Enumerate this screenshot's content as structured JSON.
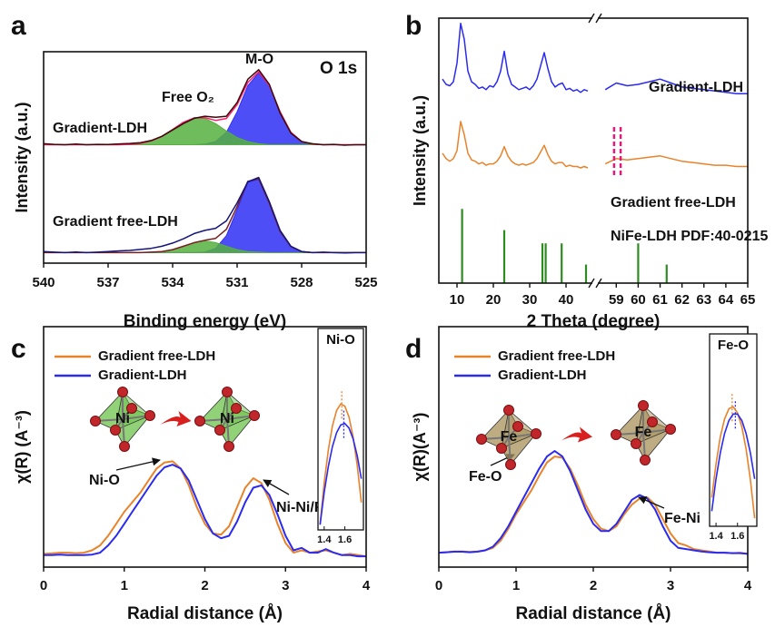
{
  "chart_data": [
    {
      "type": "line",
      "panel": "a",
      "x_label": "Binding energy (eV)",
      "y_label": "Intensity (a.u.)",
      "labels": [
        {
          "text": "O 1s",
          "color": "#000000"
        },
        {
          "text": "M-O",
          "color": "#2f2ff5"
        },
        {
          "text": "Free O₂",
          "color": "#4aa83a"
        },
        {
          "text": "Gradient-LDH",
          "color": "#111111"
        },
        {
          "text": "Gradient free-LDH",
          "color": "#111111"
        }
      ],
      "xlim": [
        540,
        525
      ],
      "xticks": [
        540,
        537,
        534,
        531,
        528,
        525
      ],
      "ylim": [
        0,
        10
      ],
      "x": [
        540,
        539.5,
        539,
        538.5,
        538,
        537.5,
        537,
        536.5,
        536,
        535.5,
        535,
        534.5,
        534,
        533.5,
        533,
        532.5,
        532,
        531.5,
        531,
        530.5,
        530,
        529.5,
        529,
        528.5,
        528,
        527.5,
        527,
        526.5,
        526,
        525.5,
        525
      ],
      "series": [
        {
          "color": "#2f2ff5",
          "fill": true,
          "values": [
            5.6,
            5.6,
            5.6,
            5.6,
            5.6,
            5.6,
            5.6,
            5.6,
            5.6,
            5.6,
            5.6,
            5.6,
            5.6,
            5.6,
            5.6,
            5.63,
            5.75,
            6.19,
            7.16,
            8.4,
            9.0,
            8.4,
            7.16,
            6.19,
            5.75,
            5.63,
            5.6,
            5.6,
            5.6,
            5.6,
            5.6
          ]
        },
        {
          "color": "#55b040",
          "fill": true,
          "values": [
            5.6,
            5.6,
            5.6,
            5.6,
            5.6,
            5.6,
            5.6,
            5.6,
            5.62,
            5.66,
            5.78,
            5.99,
            6.32,
            6.66,
            6.87,
            6.85,
            6.6,
            6.25,
            5.94,
            5.75,
            5.65,
            5.6,
            5.6,
            5.6,
            5.6,
            5.6,
            5.6,
            5.6,
            5.6,
            5.6,
            5.6
          ]
        },
        {
          "color": "#ff1f6e",
          "values": [
            5.6,
            5.6,
            5.6,
            5.6,
            5.6,
            5.6,
            5.6,
            5.6,
            5.62,
            5.66,
            5.78,
            5.99,
            6.32,
            6.66,
            6.87,
            6.88,
            6.75,
            6.84,
            7.5,
            8.55,
            9.05,
            8.4,
            7.16,
            6.19,
            5.75,
            5.63,
            5.6,
            5.6,
            5.6,
            5.6,
            5.6
          ]
        },
        {
          "color": "#3b0a0a",
          "values": [
            5.65,
            5.62,
            5.6,
            5.63,
            5.6,
            5.62,
            5.61,
            5.64,
            5.66,
            5.7,
            5.8,
            6.0,
            6.3,
            6.6,
            6.85,
            6.95,
            6.9,
            6.95,
            7.6,
            8.7,
            9.15,
            8.45,
            7.1,
            6.15,
            5.75,
            5.65,
            5.6,
            5.62,
            5.58,
            5.6,
            5.6
          ]
        },
        {
          "color": "#2f2ff5",
          "fill": true,
          "values": [
            0.5,
            0.5,
            0.5,
            0.5,
            0.5,
            0.5,
            0.5,
            0.5,
            0.5,
            0.5,
            0.5,
            0.5,
            0.5,
            0.5,
            0.5,
            0.53,
            0.7,
            1.3,
            2.54,
            3.82,
            3.97,
            2.83,
            1.5,
            0.78,
            0.55,
            0.5,
            0.5,
            0.5,
            0.5,
            0.5,
            0.5
          ]
        },
        {
          "color": "#55b040",
          "fill": true,
          "values": [
            0.5,
            0.5,
            0.5,
            0.5,
            0.5,
            0.5,
            0.5,
            0.5,
            0.5,
            0.5,
            0.52,
            0.55,
            0.64,
            0.8,
            0.97,
            1.05,
            0.97,
            0.8,
            0.64,
            0.55,
            0.52,
            0.5,
            0.5,
            0.5,
            0.5,
            0.5,
            0.5,
            0.5,
            0.5,
            0.5,
            0.5
          ]
        },
        {
          "color": "#7a2020",
          "values": [
            0.5,
            0.5,
            0.5,
            0.5,
            0.5,
            0.5,
            0.5,
            0.5,
            0.5,
            0.5,
            0.52,
            0.55,
            0.64,
            0.8,
            0.97,
            1.08,
            1.17,
            1.6,
            2.68,
            3.87,
            3.99,
            2.83,
            1.5,
            0.78,
            0.55,
            0.5,
            0.5,
            0.5,
            0.5,
            0.5,
            0.5
          ]
        },
        {
          "color": "#14147a",
          "values": [
            0.55,
            0.52,
            0.5,
            0.53,
            0.5,
            0.52,
            0.55,
            0.58,
            0.6,
            0.65,
            0.7,
            0.8,
            0.95,
            1.15,
            1.4,
            1.55,
            1.65,
            2.0,
            2.85,
            3.85,
            4.05,
            2.9,
            1.55,
            0.8,
            0.55,
            0.5,
            0.52,
            0.5,
            0.48,
            0.5,
            0.5
          ]
        }
      ]
    },
    {
      "type": "line",
      "panel": "b",
      "x_label": "2 Theta (degree)",
      "y_label": "Intensity (a.u.)",
      "xlim": [
        [
          5,
          47
        ],
        [
          58.2,
          65
        ]
      ],
      "xticks": [
        10,
        20,
        30,
        40,
        59,
        60,
        61,
        62,
        63,
        64,
        65
      ],
      "ylim": [
        0,
        10
      ],
      "x": [
        6,
        7,
        8,
        9,
        10,
        11,
        12,
        13,
        14,
        15,
        16,
        17,
        18,
        19,
        20,
        21,
        22,
        23,
        24,
        25,
        26,
        27,
        28,
        29,
        30,
        31,
        32,
        33,
        34,
        35,
        36,
        37,
        38,
        39,
        40,
        41,
        42,
        43,
        44,
        45,
        46,
        58.5,
        59,
        59.5,
        60,
        60.5,
        61,
        61.5,
        62,
        62.5,
        63,
        63.5,
        64,
        64.5,
        65
      ],
      "series": [
        {
          "name": "Gradient-LDH",
          "color": "#2a2af0",
          "values": [
            7.7,
            7.5,
            7.45,
            7.6,
            8.3,
            9.8,
            9.2,
            8.0,
            7.6,
            7.5,
            7.35,
            7.4,
            7.3,
            7.45,
            7.4,
            7.6,
            8.0,
            8.75,
            7.9,
            7.5,
            7.4,
            7.3,
            7.35,
            7.4,
            7.3,
            7.45,
            7.7,
            8.2,
            8.7,
            8.1,
            7.6,
            7.4,
            7.5,
            7.55,
            7.3,
            7.35,
            7.25,
            7.3,
            7.2,
            7.3,
            7.25,
            7.3,
            7.55,
            7.45,
            7.5,
            7.6,
            7.7,
            7.55,
            7.4,
            7.35,
            7.3,
            7.25,
            7.2,
            7.15,
            7.15
          ]
        },
        {
          "name": "Gradient free-LDH",
          "color": "#e8832a",
          "values": [
            4.9,
            4.7,
            4.6,
            4.7,
            5.0,
            6.1,
            5.6,
            4.9,
            4.65,
            4.6,
            4.5,
            4.55,
            4.45,
            4.5,
            4.5,
            4.6,
            4.8,
            5.15,
            4.8,
            4.6,
            4.5,
            4.45,
            4.5,
            4.45,
            4.5,
            4.55,
            4.7,
            4.95,
            5.2,
            4.85,
            4.6,
            4.5,
            4.55,
            4.55,
            4.4,
            4.45,
            4.4,
            4.4,
            4.35,
            4.4,
            4.35,
            4.5,
            4.7,
            4.65,
            4.7,
            4.75,
            4.8,
            4.7,
            4.6,
            4.55,
            4.5,
            4.45,
            4.45,
            4.4,
            4.4
          ]
        }
      ],
      "reference": {
        "name": "NiFe-LDH PDF:40-0215",
        "color": "#2e8b22",
        "x": [
          11.4,
          23.0,
          33.5,
          34.4,
          38.8,
          45.5,
          60.0,
          61.3
        ],
        "values": [
          2.8,
          2.0,
          1.5,
          1.5,
          1.5,
          0.7,
          1.5,
          0.7
        ]
      },
      "markers": {
        "color": "#e6197a",
        "x": [
          58.9,
          59.2
        ]
      }
    },
    {
      "type": "line",
      "panel": "c",
      "x_label": "Radial distance (Å)",
      "y_label": "χ(R) (A⁻³)",
      "legend": "upper left",
      "xlim": [
        0,
        4
      ],
      "xticks": [
        0,
        1,
        2,
        3,
        4
      ],
      "ylim": [
        0,
        10
      ],
      "x": [
        0,
        0.1,
        0.2,
        0.3,
        0.4,
        0.5,
        0.6,
        0.7,
        0.8,
        0.9,
        1.0,
        1.1,
        1.2,
        1.3,
        1.4,
        1.5,
        1.6,
        1.7,
        1.8,
        1.9,
        2.0,
        2.1,
        2.2,
        2.3,
        2.4,
        2.5,
        2.6,
        2.7,
        2.8,
        2.9,
        3.0,
        3.1,
        3.2,
        3.3,
        3.4,
        3.5,
        3.6,
        3.7,
        3.8,
        3.9,
        4.0
      ],
      "series": [
        {
          "name": "Gradient free-LDH",
          "color": "#e8832a",
          "values": [
            0.55,
            0.57,
            0.6,
            0.6,
            0.58,
            0.6,
            0.7,
            0.9,
            1.3,
            1.8,
            2.3,
            2.7,
            3.1,
            3.6,
            4.1,
            4.35,
            4.4,
            4.1,
            3.4,
            2.5,
            1.8,
            1.4,
            1.35,
            1.7,
            2.5,
            3.3,
            3.7,
            3.5,
            2.8,
            1.8,
            1.0,
            0.6,
            0.7,
            0.6,
            0.65,
            0.7,
            0.6,
            0.5,
            0.55,
            0.5,
            0.45
          ]
        },
        {
          "name": "Gradient-LDH",
          "color": "#2a2af0",
          "values": [
            0.5,
            0.5,
            0.52,
            0.5,
            0.5,
            0.5,
            0.52,
            0.6,
            0.9,
            1.3,
            1.8,
            2.3,
            2.8,
            3.3,
            3.8,
            4.15,
            4.26,
            4.1,
            3.6,
            2.8,
            2.0,
            1.4,
            1.2,
            1.3,
            1.9,
            2.7,
            3.3,
            3.4,
            3.0,
            2.2,
            1.3,
            0.7,
            0.8,
            0.6,
            0.6,
            0.75,
            0.6,
            0.5,
            0.5,
            0.45,
            0.45
          ]
        }
      ],
      "labels": [
        {
          "text": "Ni-O",
          "color": "#111111"
        },
        {
          "text": "Ni-Ni/Fe",
          "color": "#111111"
        }
      ],
      "structure_labels": [
        "Ni",
        "Ni"
      ],
      "inset": {
        "title": "Ni-O",
        "xlim": [
          1.34,
          1.78
        ],
        "xticks": [
          1.4,
          1.6
        ],
        "ylim": [
          0,
          10
        ],
        "x": [
          1.36,
          1.4,
          1.44,
          1.48,
          1.52,
          1.56,
          1.6,
          1.64,
          1.68,
          1.72,
          1.76
        ],
        "series": [
          {
            "color": "#e8832a",
            "peak": 1.57,
            "values": [
              0.31,
              2.65,
              4.5,
              5.85,
              6.72,
              7.08,
              6.96,
              6.35,
              5.24,
              3.63,
              1.54
            ]
          },
          {
            "color": "#2a2af0",
            "peak": 1.59,
            "values": [
              0.29,
              2.1,
              3.57,
              4.69,
              5.47,
              5.9,
              5.99,
              5.73,
              5.13,
              4.17,
              2.88
            ]
          }
        ]
      }
    },
    {
      "type": "line",
      "panel": "d",
      "x_label": "Radial distance (Å)",
      "y_label": "χ(R)(A⁻³)",
      "legend": "upper left",
      "xlim": [
        0,
        4
      ],
      "xticks": [
        0,
        1,
        2,
        3,
        4
      ],
      "ylim": [
        0,
        10
      ],
      "x": [
        0,
        0.1,
        0.2,
        0.3,
        0.4,
        0.5,
        0.6,
        0.7,
        0.8,
        0.9,
        1.0,
        1.1,
        1.2,
        1.3,
        1.4,
        1.5,
        1.6,
        1.7,
        1.8,
        1.9,
        2.0,
        2.1,
        2.2,
        2.3,
        2.4,
        2.5,
        2.6,
        2.7,
        2.8,
        2.9,
        3.0,
        3.1,
        3.2,
        3.3,
        3.4,
        3.5,
        3.6,
        3.7,
        3.8,
        3.9,
        4.0
      ],
      "series": [
        {
          "name": "Gradient free-LDH",
          "color": "#e8832a",
          "values": [
            0.6,
            0.62,
            0.65,
            0.65,
            0.63,
            0.65,
            0.7,
            0.8,
            1.1,
            1.6,
            2.2,
            2.7,
            3.2,
            3.8,
            4.35,
            4.6,
            4.55,
            4.1,
            3.4,
            2.6,
            2.0,
            1.6,
            1.5,
            1.7,
            2.2,
            2.6,
            2.85,
            2.9,
            2.6,
            2.0,
            1.4,
            1.0,
            0.9,
            0.75,
            0.7,
            0.65,
            0.6,
            0.6,
            0.58,
            0.6,
            0.55
          ]
        },
        {
          "name": "Gradient-LDH",
          "color": "#2a2af0",
          "values": [
            0.6,
            0.62,
            0.64,
            0.64,
            0.62,
            0.64,
            0.7,
            0.85,
            1.2,
            1.7,
            2.3,
            2.9,
            3.5,
            4.1,
            4.6,
            4.83,
            4.6,
            4.0,
            3.2,
            2.4,
            1.8,
            1.5,
            1.5,
            1.8,
            2.3,
            2.8,
            3.0,
            2.85,
            2.4,
            1.7,
            1.1,
            0.8,
            0.75,
            0.7,
            0.65,
            0.62,
            0.6,
            0.6,
            0.58,
            0.58,
            0.55
          ]
        }
      ],
      "labels": [
        {
          "text": "Fe-O",
          "color": "#111111"
        },
        {
          "text": "Fe-Ni",
          "color": "#111111"
        }
      ],
      "structure_labels": [
        "Fe",
        "Fe"
      ],
      "inset": {
        "title": "Fe-O",
        "xlim": [
          1.34,
          1.78
        ],
        "xticks": [
          1.4,
          1.6
        ],
        "ylim": [
          0,
          10
        ],
        "x": [
          1.36,
          1.4,
          1.44,
          1.48,
          1.52,
          1.56,
          1.6,
          1.64,
          1.68,
          1.72,
          1.76
        ],
        "series": [
          {
            "color": "#e8832a",
            "peak": 1.55,
            "values": [
              1.7,
              3.7,
              5.3,
              6.36,
              6.97,
              7.08,
              6.72,
              5.9,
              4.57,
              2.76,
              0.48
            ]
          },
          {
            "color": "#2a2af0",
            "peak": 1.58,
            "values": [
              0.89,
              2.81,
              4.35,
              5.5,
              6.27,
              6.65,
              6.65,
              6.27,
              5.5,
              4.35,
              2.81
            ]
          }
        ]
      }
    }
  ]
}
